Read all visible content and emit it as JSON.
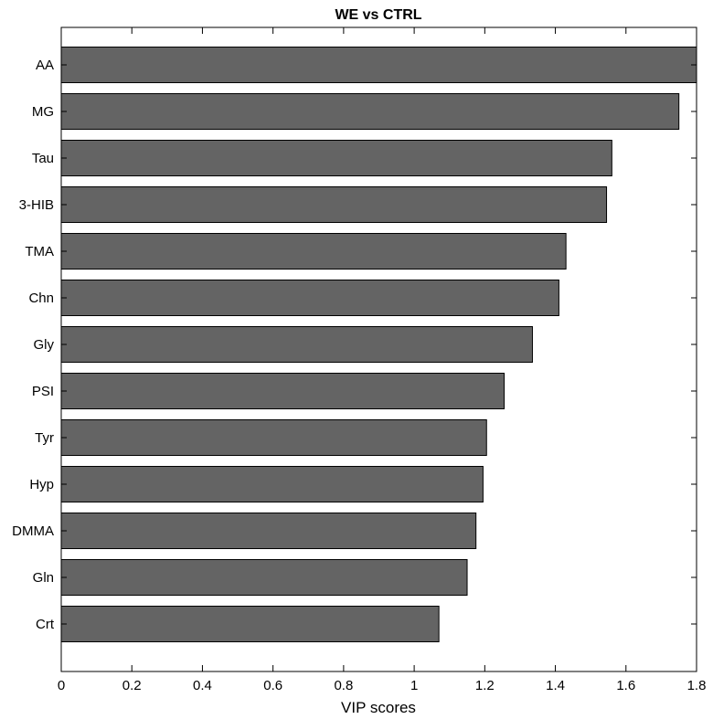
{
  "chart_data": {
    "type": "bar",
    "orientation": "horizontal",
    "title": "WE vs CTRL",
    "xlabel": "VIP scores",
    "ylabel": "",
    "categories": [
      "AA",
      "MG",
      "Tau",
      "3-HIB",
      "TMA",
      "Chn",
      "Gly",
      "PSI",
      "Tyr",
      "Hyp",
      "DMMA",
      "Gln",
      "Crt"
    ],
    "values": [
      1.8,
      1.75,
      1.56,
      1.545,
      1.43,
      1.41,
      1.335,
      1.255,
      1.205,
      1.195,
      1.175,
      1.15,
      1.07
    ],
    "xlim": [
      0,
      1.8
    ],
    "xticks": [
      "0",
      "0.2",
      "0.4",
      "0.6",
      "0.8",
      "1",
      "1.2",
      "1.4",
      "1.6",
      "1.8"
    ],
    "grid": false,
    "legend": "none",
    "colors": {
      "bar_fill": "#646464",
      "bar_stroke": "#000000",
      "axis": "#000000",
      "background": "#ffffff"
    }
  }
}
